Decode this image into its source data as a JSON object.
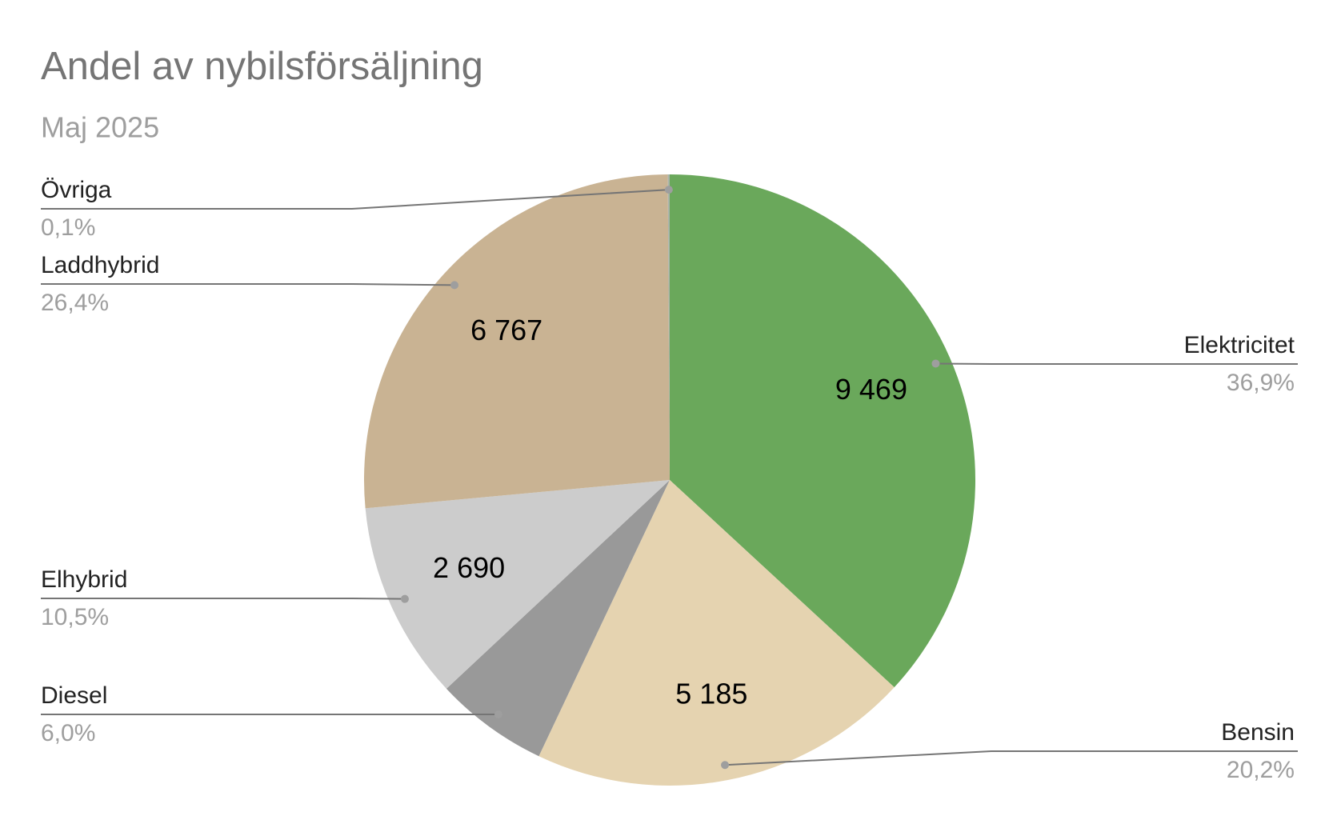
{
  "chart_data": {
    "type": "pie",
    "title": "Andel av nybilsförsäljning",
    "subtitle": "Maj 2025",
    "categories": [
      "Elektricitet",
      "Bensin",
      "Diesel",
      "Elhybrid",
      "Laddhybrid",
      "Övriga"
    ],
    "values": [
      36.9,
      20.2,
      6.0,
      10.5,
      26.4,
      0.1
    ],
    "value_labels": [
      "36,9%",
      "20,2%",
      "6,0%",
      "10,5%",
      "26,4%",
      "0,1%"
    ],
    "counts": [
      9469,
      5185,
      null,
      2690,
      6767,
      null
    ],
    "count_labels": [
      "9 469",
      "5 185",
      null,
      "2 690",
      "6 767",
      null
    ],
    "colors": [
      "#6aa85b",
      "#e5d3b0",
      "#999999",
      "#cccccc",
      "#c9b393",
      "#aab4aa"
    ]
  }
}
